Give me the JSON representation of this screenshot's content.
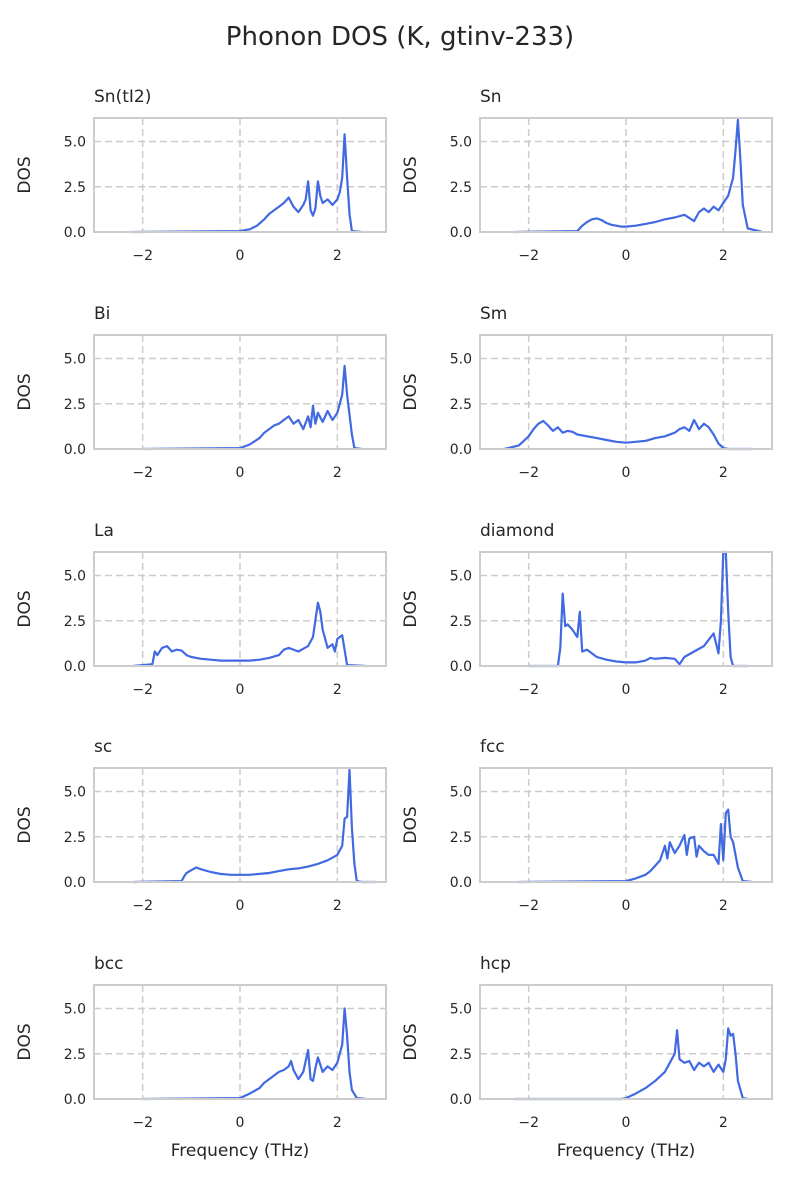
{
  "figure": {
    "title": "Phonon DOS (K, gtinv-233)"
  },
  "colors": {
    "line": "#4169e1"
  },
  "chart_data": [
    {
      "type": "line",
      "title": "Sn(tI2)",
      "ylabel": "DOS",
      "xlabel": "",
      "xlim": [
        -3,
        3
      ],
      "ylim": [
        0,
        6.3
      ],
      "xticks": [
        -2,
        0,
        2
      ],
      "yticks": [
        0.0,
        2.5,
        5.0
      ],
      "xticklabels": [
        "−2",
        "0",
        "2"
      ],
      "yticklabels": [
        "0.0",
        "2.5",
        "5.0"
      ],
      "grid": true,
      "series": [
        {
          "x": [
            -2.2,
            0.0,
            0.2,
            0.35,
            0.5,
            0.6,
            0.7,
            0.8,
            0.9,
            1.0,
            1.1,
            1.2,
            1.3,
            1.35,
            1.4,
            1.45,
            1.5,
            1.55,
            1.6,
            1.65,
            1.7,
            1.8,
            1.9,
            2.0,
            2.05,
            2.1,
            2.15,
            2.2,
            2.25,
            2.3,
            2.5
          ],
          "y": [
            0,
            0.05,
            0.15,
            0.35,
            0.7,
            1.0,
            1.2,
            1.4,
            1.6,
            1.9,
            1.4,
            1.1,
            1.5,
            1.8,
            2.8,
            1.2,
            0.9,
            1.3,
            2.8,
            2.0,
            1.6,
            1.8,
            1.5,
            1.8,
            2.2,
            3.0,
            5.4,
            3.0,
            1.0,
            0.05,
            0
          ]
        }
      ]
    },
    {
      "type": "line",
      "title": "Sn",
      "ylabel": "DOS",
      "xlabel": "",
      "xlim": [
        -3,
        3
      ],
      "ylim": [
        0,
        6.3
      ],
      "xticks": [
        -2,
        0,
        2
      ],
      "yticks": [
        0.0,
        2.5,
        5.0
      ],
      "xticklabels": [
        "−2",
        "0",
        "2"
      ],
      "yticklabels": [
        "0.0",
        "2.5",
        "5.0"
      ],
      "grid": true,
      "series": [
        {
          "x": [
            -2.3,
            -1.0,
            -0.9,
            -0.8,
            -0.7,
            -0.6,
            -0.5,
            -0.4,
            -0.3,
            -0.2,
            -0.1,
            0.0,
            0.2,
            0.4,
            0.6,
            0.8,
            1.0,
            1.2,
            1.4,
            1.5,
            1.6,
            1.7,
            1.8,
            1.9,
            2.0,
            2.1,
            2.2,
            2.25,
            2.3,
            2.35,
            2.4,
            2.5,
            2.8
          ],
          "y": [
            0,
            0.05,
            0.35,
            0.55,
            0.7,
            0.75,
            0.65,
            0.5,
            0.4,
            0.35,
            0.3,
            0.3,
            0.35,
            0.45,
            0.55,
            0.7,
            0.8,
            0.95,
            0.6,
            1.1,
            1.3,
            1.1,
            1.4,
            1.2,
            1.6,
            2.0,
            3.0,
            4.5,
            6.2,
            4.0,
            1.5,
            0.2,
            0
          ]
        }
      ]
    },
    {
      "type": "line",
      "title": "Bi",
      "ylabel": "DOS",
      "xlabel": "",
      "xlim": [
        -3,
        3
      ],
      "ylim": [
        0,
        6.3
      ],
      "xticks": [
        -2,
        0,
        2
      ],
      "yticks": [
        0.0,
        2.5,
        5.0
      ],
      "xticklabels": [
        "−2",
        "0",
        "2"
      ],
      "yticklabels": [
        "0.0",
        "2.5",
        "5.0"
      ],
      "grid": true,
      "series": [
        {
          "x": [
            -2.0,
            0.0,
            0.2,
            0.4,
            0.5,
            0.6,
            0.7,
            0.8,
            0.9,
            1.0,
            1.1,
            1.2,
            1.3,
            1.4,
            1.45,
            1.5,
            1.55,
            1.6,
            1.7,
            1.8,
            1.9,
            2.0,
            2.1,
            2.15,
            2.2,
            2.3,
            2.35,
            2.5
          ],
          "y": [
            0,
            0.05,
            0.25,
            0.6,
            0.9,
            1.1,
            1.3,
            1.4,
            1.6,
            1.8,
            1.4,
            1.6,
            1.1,
            1.8,
            1.2,
            2.4,
            1.4,
            2.0,
            1.5,
            2.1,
            1.6,
            2.0,
            3.0,
            4.6,
            3.0,
            0.8,
            0.05,
            0
          ]
        }
      ]
    },
    {
      "type": "line",
      "title": "Sm",
      "ylabel": "DOS",
      "xlabel": "",
      "xlim": [
        -3,
        3
      ],
      "ylim": [
        0,
        6.3
      ],
      "xticks": [
        -2,
        0,
        2
      ],
      "yticks": [
        0.0,
        2.5,
        5.0
      ],
      "xticklabels": [
        "−2",
        "0",
        "2"
      ],
      "yticklabels": [
        "0.0",
        "2.5",
        "5.0"
      ],
      "grid": true,
      "series": [
        {
          "x": [
            -2.5,
            -2.2,
            -2.0,
            -1.9,
            -1.8,
            -1.7,
            -1.6,
            -1.5,
            -1.4,
            -1.3,
            -1.2,
            -1.1,
            -1.0,
            -0.8,
            -0.6,
            -0.4,
            -0.2,
            0.0,
            0.2,
            0.4,
            0.6,
            0.8,
            1.0,
            1.1,
            1.2,
            1.3,
            1.4,
            1.5,
            1.6,
            1.7,
            1.8,
            1.9,
            2.0,
            2.1,
            2.6
          ],
          "y": [
            0,
            0.2,
            0.7,
            1.1,
            1.4,
            1.55,
            1.3,
            1.0,
            1.2,
            0.9,
            1.0,
            0.95,
            0.8,
            0.7,
            0.6,
            0.5,
            0.4,
            0.35,
            0.4,
            0.45,
            0.6,
            0.7,
            0.9,
            1.1,
            1.2,
            1.0,
            1.6,
            1.1,
            1.4,
            1.2,
            0.8,
            0.3,
            0.05,
            0,
            0
          ]
        }
      ]
    },
    {
      "type": "line",
      "title": "La",
      "ylabel": "DOS",
      "xlabel": "",
      "xlim": [
        -3,
        3
      ],
      "ylim": [
        0,
        6.3
      ],
      "xticks": [
        -2,
        0,
        2
      ],
      "yticks": [
        0.0,
        2.5,
        5.0
      ],
      "xticklabels": [
        "−2",
        "0",
        "2"
      ],
      "yticklabels": [
        "0.0",
        "2.5",
        "5.0"
      ],
      "grid": true,
      "series": [
        {
          "x": [
            -2.2,
            -1.8,
            -1.75,
            -1.7,
            -1.6,
            -1.5,
            -1.4,
            -1.3,
            -1.2,
            -1.1,
            -1.0,
            -0.8,
            -0.6,
            -0.4,
            -0.2,
            0.0,
            0.2,
            0.4,
            0.6,
            0.8,
            0.9,
            1.0,
            1.2,
            1.4,
            1.5,
            1.6,
            1.65,
            1.7,
            1.8,
            1.9,
            1.95,
            2.0,
            2.1,
            2.2,
            2.6
          ],
          "y": [
            0,
            0.1,
            0.8,
            0.6,
            1.0,
            1.1,
            0.8,
            0.9,
            0.85,
            0.6,
            0.5,
            0.4,
            0.35,
            0.3,
            0.3,
            0.3,
            0.3,
            0.35,
            0.45,
            0.6,
            0.9,
            1.0,
            0.8,
            1.1,
            1.6,
            3.5,
            3.0,
            2.0,
            1.0,
            1.2,
            0.8,
            1.5,
            1.7,
            0.05,
            0
          ]
        }
      ]
    },
    {
      "type": "line",
      "title": "diamond",
      "ylabel": "DOS",
      "xlabel": "",
      "xlim": [
        -3,
        3
      ],
      "ylim": [
        0,
        6.3
      ],
      "xticks": [
        -2,
        0,
        2
      ],
      "yticks": [
        0.0,
        2.5,
        5.0
      ],
      "xticklabels": [
        "−2",
        "0",
        "2"
      ],
      "yticklabels": [
        "0.0",
        "2.5",
        "5.0"
      ],
      "grid": true,
      "series": [
        {
          "x": [
            -2.0,
            -1.6,
            -1.4,
            -1.35,
            -1.3,
            -1.25,
            -1.2,
            -1.1,
            -1.0,
            -0.95,
            -0.9,
            -0.8,
            -0.6,
            -0.4,
            -0.2,
            0.0,
            0.2,
            0.4,
            0.5,
            0.6,
            0.8,
            1.0,
            1.1,
            1.2,
            1.4,
            1.6,
            1.8,
            1.9,
            1.95,
            2.0,
            2.05,
            2.1,
            2.15,
            2.2,
            2.5
          ],
          "y": [
            0,
            0,
            0,
            1.0,
            4.0,
            2.2,
            2.3,
            2.0,
            1.6,
            3.0,
            0.8,
            0.9,
            0.5,
            0.35,
            0.25,
            0.2,
            0.2,
            0.3,
            0.45,
            0.4,
            0.45,
            0.4,
            0.1,
            0.5,
            0.8,
            1.1,
            1.8,
            0.7,
            2.5,
            6.3,
            6.3,
            3.0,
            0.5,
            0,
            0
          ]
        }
      ]
    },
    {
      "type": "line",
      "title": "sc",
      "ylabel": "DOS",
      "xlabel": "",
      "xlim": [
        -3,
        3
      ],
      "ylim": [
        0,
        6.3
      ],
      "xticks": [
        -2,
        0,
        2
      ],
      "yticks": [
        0.0,
        2.5,
        5.0
      ],
      "xticklabels": [
        "−2",
        "0",
        "2"
      ],
      "yticklabels": [
        "0.0",
        "2.5",
        "5.0"
      ],
      "grid": true,
      "series": [
        {
          "x": [
            -2.2,
            -1.2,
            -1.15,
            -1.1,
            -1.0,
            -0.9,
            -0.8,
            -0.6,
            -0.4,
            -0.2,
            0.0,
            0.2,
            0.4,
            0.6,
            0.8,
            1.0,
            1.2,
            1.4,
            1.6,
            1.8,
            2.0,
            2.1,
            2.15,
            2.2,
            2.25,
            2.3,
            2.35,
            2.4,
            2.5,
            2.8
          ],
          "y": [
            0,
            0.05,
            0.3,
            0.5,
            0.65,
            0.8,
            0.7,
            0.55,
            0.45,
            0.4,
            0.4,
            0.4,
            0.45,
            0.5,
            0.6,
            0.7,
            0.75,
            0.85,
            1.0,
            1.2,
            1.5,
            2.0,
            3.5,
            3.6,
            6.2,
            3.0,
            1.0,
            0.05,
            0,
            0
          ]
        }
      ]
    },
    {
      "type": "line",
      "title": "fcc",
      "ylabel": "DOS",
      "xlabel": "",
      "xlim": [
        -3,
        3
      ],
      "ylim": [
        0,
        6.3
      ],
      "xticks": [
        -2,
        0,
        2
      ],
      "yticks": [
        0.0,
        2.5,
        5.0
      ],
      "xticklabels": [
        "−2",
        "0",
        "2"
      ],
      "yticklabels": [
        "0.0",
        "2.5",
        "5.0"
      ],
      "grid": true,
      "series": [
        {
          "x": [
            -2.2,
            0.0,
            0.2,
            0.4,
            0.5,
            0.6,
            0.7,
            0.8,
            0.85,
            0.9,
            1.0,
            1.1,
            1.2,
            1.25,
            1.3,
            1.4,
            1.45,
            1.5,
            1.6,
            1.7,
            1.8,
            1.9,
            1.95,
            2.0,
            2.05,
            2.1,
            2.15,
            2.2,
            2.3,
            2.4,
            2.6
          ],
          "y": [
            0,
            0.05,
            0.2,
            0.4,
            0.6,
            0.9,
            1.2,
            2.0,
            1.3,
            2.2,
            1.6,
            2.0,
            2.6,
            1.5,
            2.4,
            2.5,
            1.4,
            2.0,
            1.7,
            1.5,
            1.5,
            1.0,
            3.2,
            1.2,
            3.8,
            4.0,
            2.5,
            2.2,
            0.8,
            0.05,
            0
          ]
        }
      ]
    },
    {
      "type": "line",
      "title": "bcc",
      "ylabel": "DOS",
      "xlabel": "Frequency (THz)",
      "xlim": [
        -3,
        3
      ],
      "ylim": [
        0,
        6.3
      ],
      "xticks": [
        -2,
        0,
        2
      ],
      "yticks": [
        0.0,
        2.5,
        5.0
      ],
      "xticklabels": [
        "−2",
        "0",
        "2"
      ],
      "yticklabels": [
        "0.0",
        "2.5",
        "5.0"
      ],
      "grid": true,
      "series": [
        {
          "x": [
            -2.0,
            0.0,
            0.2,
            0.4,
            0.5,
            0.6,
            0.7,
            0.8,
            0.9,
            1.0,
            1.05,
            1.1,
            1.2,
            1.3,
            1.4,
            1.45,
            1.5,
            1.55,
            1.6,
            1.65,
            1.7,
            1.8,
            1.9,
            2.0,
            2.1,
            2.15,
            2.2,
            2.25,
            2.3,
            2.4,
            2.6
          ],
          "y": [
            0,
            0.05,
            0.3,
            0.6,
            0.9,
            1.1,
            1.3,
            1.5,
            1.6,
            1.8,
            2.1,
            1.6,
            1.1,
            1.5,
            2.7,
            1.1,
            1.0,
            1.7,
            2.3,
            1.9,
            1.5,
            1.8,
            1.6,
            2.0,
            3.0,
            5.0,
            3.5,
            1.5,
            0.5,
            0.05,
            0
          ]
        }
      ]
    },
    {
      "type": "line",
      "title": "hcp",
      "ylabel": "DOS",
      "xlabel": "Frequency (THz)",
      "xlim": [
        -3,
        3
      ],
      "ylim": [
        0,
        6.3
      ],
      "xticks": [
        -2,
        0,
        2
      ],
      "yticks": [
        0.0,
        2.5,
        5.0
      ],
      "xticklabels": [
        "−2",
        "0",
        "2"
      ],
      "yticklabels": [
        "0.0",
        "2.5",
        "5.0"
      ],
      "grid": true,
      "series": [
        {
          "x": [
            -2.3,
            -0.1,
            0.0,
            0.2,
            0.4,
            0.6,
            0.8,
            0.9,
            1.0,
            1.05,
            1.1,
            1.2,
            1.3,
            1.4,
            1.5,
            1.6,
            1.7,
            1.8,
            1.9,
            2.0,
            2.05,
            2.1,
            2.15,
            2.2,
            2.25,
            2.3,
            2.4,
            2.5
          ],
          "y": [
            0,
            0,
            0.05,
            0.3,
            0.6,
            1.0,
            1.5,
            2.0,
            2.5,
            3.8,
            2.2,
            2.0,
            2.1,
            1.6,
            2.0,
            1.8,
            2.0,
            1.5,
            1.9,
            1.5,
            2.2,
            3.9,
            3.5,
            3.6,
            2.5,
            1.0,
            0.05,
            0
          ]
        }
      ]
    }
  ]
}
